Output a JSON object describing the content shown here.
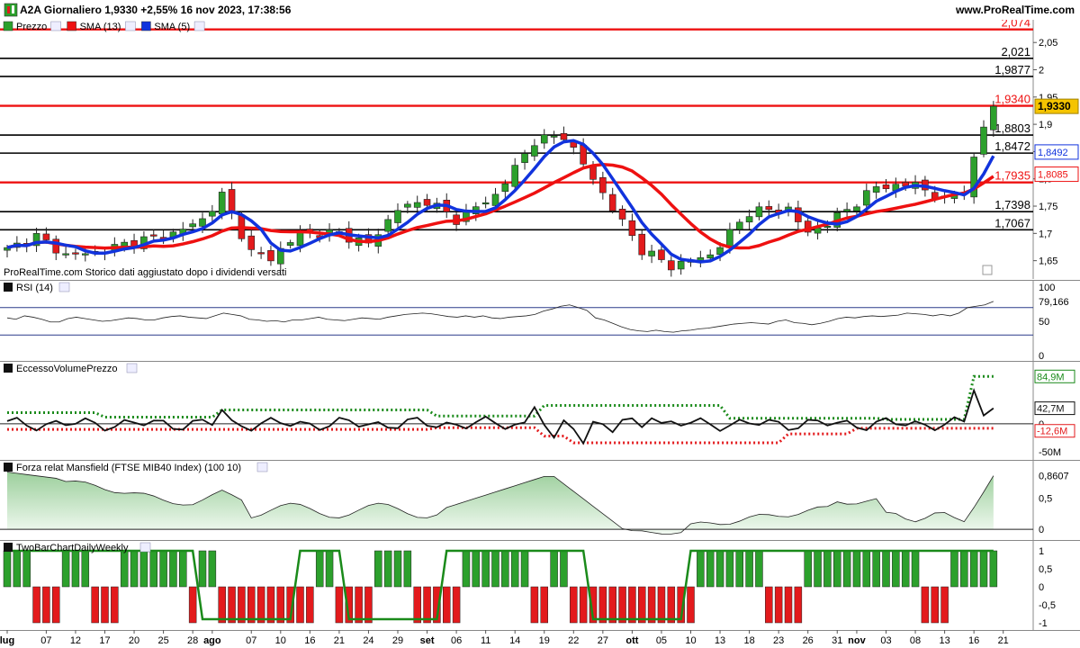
{
  "window": {
    "title": "A2A Giornaliero 1,9330 +2,55% 16 nov 2023, 17:38:56",
    "website": "www.ProRealTime.com"
  },
  "legend": {
    "price": "Prezzo",
    "sma13": "SMA (13)",
    "sma5": "SMA (5)"
  },
  "watermark": "ProRealTime.com  Storico dati aggiustato dopo i dividendi versati",
  "colors": {
    "up": "#2ca02c",
    "down": "#e31a1c",
    "sma13": "#ee1111",
    "sma5": "#1133dd",
    "grid": "#dddddd"
  },
  "price_pane": {
    "yticks": [
      "2,05",
      "2",
      "1,95",
      "1,9",
      "1,85",
      "1,8",
      "1,75",
      "1,7",
      "1,65"
    ],
    "ytick_values": [
      2.05,
      2.0,
      1.95,
      1.9,
      1.85,
      1.8,
      1.75,
      1.7,
      1.65
    ],
    "ylim": [
      1.623,
      2.085
    ],
    "levels": [
      {
        "value": 2.074,
        "label": "2,074",
        "color": "#ee1111"
      },
      {
        "value": 2.021,
        "label": "2,021",
        "color": "#000000"
      },
      {
        "value": 1.9877,
        "label": "1,9877",
        "color": "#000000"
      },
      {
        "value": 1.934,
        "label": "1,9340",
        "color": "#ee1111"
      },
      {
        "value": 1.8803,
        "label": "1,8803",
        "color": "#000000"
      },
      {
        "value": 1.8472,
        "label": "1,8472",
        "color": "#000000"
      },
      {
        "value": 1.7935,
        "label": "1,7935",
        "color": "#ee1111"
      },
      {
        "value": 1.7398,
        "label": "1,7398",
        "color": "#000000"
      },
      {
        "value": 1.7067,
        "label": "1,7067",
        "color": "#000000"
      }
    ],
    "badges": [
      {
        "value": 1.933,
        "label": "1,9330",
        "type": "last"
      },
      {
        "value": 1.8492,
        "label": "1,8492",
        "type": "sma5"
      },
      {
        "value": 1.8085,
        "label": "1,8085",
        "type": "sma13"
      }
    ]
  },
  "rsi": {
    "title": "RSI (14)",
    "yticks": [
      "100",
      "50",
      "0"
    ],
    "value_label": "79,166",
    "upper": 70,
    "lower": 30,
    "values": [
      55,
      53,
      58,
      56,
      53,
      49,
      49,
      54,
      56,
      54,
      52,
      50,
      51,
      53,
      55,
      54,
      52,
      52,
      55,
      57,
      58,
      56,
      55,
      54,
      58,
      62,
      60,
      58,
      53,
      52,
      50,
      51,
      49,
      52,
      52,
      54,
      56,
      53,
      52,
      51,
      53,
      55,
      54,
      53,
      56,
      58,
      60,
      61,
      62,
      61,
      59,
      57,
      56,
      58,
      56,
      58,
      55,
      54,
      56,
      57,
      58,
      60,
      65,
      68,
      72,
      74,
      70,
      66,
      55,
      52,
      47,
      42,
      38,
      36,
      35,
      37,
      35,
      34,
      36,
      37,
      39,
      40,
      42,
      44,
      46,
      47,
      48,
      47,
      46,
      50,
      52,
      48,
      47,
      45,
      47,
      50,
      54,
      56,
      55,
      57,
      58,
      57,
      58,
      59,
      62,
      61,
      60,
      58,
      60,
      58,
      62,
      70,
      72,
      74,
      79.166
    ]
  },
  "vol": {
    "title": "EccessoVolumePrezzo",
    "yticks": [
      "0",
      "-50M"
    ],
    "labels": [
      "84,9M",
      "42,7M",
      "0",
      "-12,6M"
    ]
  },
  "mansfield": {
    "title": "Forza relat Mansfield (FTSE MIB40 Index) (100 10)",
    "yticks": [
      "0,5",
      "0"
    ],
    "value_label": "0,8607"
  },
  "twobar": {
    "title": "TwoBarChartDailyWeekly",
    "yticks": [
      "1",
      "0,5",
      "0",
      "-0,5",
      "-1"
    ]
  },
  "xaxis": [
    {
      "label": "lug",
      "i": 0
    },
    {
      "label": "07",
      "i": 4
    },
    {
      "label": "12",
      "i": 7
    },
    {
      "label": "17",
      "i": 10
    },
    {
      "label": "20",
      "i": 13
    },
    {
      "label": "25",
      "i": 16
    },
    {
      "label": "28",
      "i": 19
    },
    {
      "label": "ago",
      "i": 21
    },
    {
      "label": "07",
      "i": 25
    },
    {
      "label": "10",
      "i": 28
    },
    {
      "label": "16",
      "i": 31
    },
    {
      "label": "21",
      "i": 34
    },
    {
      "label": "24",
      "i": 37
    },
    {
      "label": "29",
      "i": 40
    },
    {
      "label": "set",
      "i": 43
    },
    {
      "label": "06",
      "i": 46
    },
    {
      "label": "11",
      "i": 49
    },
    {
      "label": "14",
      "i": 52
    },
    {
      "label": "19",
      "i": 55
    },
    {
      "label": "22",
      "i": 58
    },
    {
      "label": "27",
      "i": 61
    },
    {
      "label": "ott",
      "i": 64
    },
    {
      "label": "05",
      "i": 67
    },
    {
      "label": "10",
      "i": 70
    },
    {
      "label": "13",
      "i": 73
    },
    {
      "label": "18",
      "i": 76
    },
    {
      "label": "23",
      "i": 79
    },
    {
      "label": "26",
      "i": 82
    },
    {
      "label": "31",
      "i": 85
    },
    {
      "label": "nov",
      "i": 87
    },
    {
      "label": "03",
      "i": 90
    },
    {
      "label": "08",
      "i": 93
    },
    {
      "label": "13",
      "i": 96
    },
    {
      "label": "16",
      "i": 99
    },
    {
      "label": "21",
      "i": 102
    }
  ]
}
